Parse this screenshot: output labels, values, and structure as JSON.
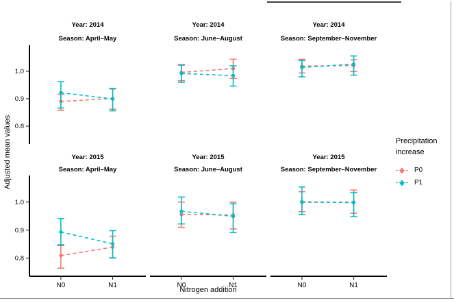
{
  "figure": {
    "y_axis_title": "Adjusted mean values",
    "x_axis_title": "Nitrogen addition",
    "legend": {
      "title_lines": [
        "Precipitation",
        "increase"
      ],
      "items": [
        {
          "label": "P0",
          "color": "#F8766D"
        },
        {
          "label": "P1",
          "color": "#00BFC4"
        }
      ]
    }
  },
  "chart_data": {
    "type": "line",
    "style": "faceted point-range chart: dashed lines connecting group means with error bars (ggplot-like, 2 rows x 3 cols)",
    "xlabel": "Nitrogen addition",
    "ylabel": "Adjusted mean values",
    "x_categories": [
      "N0",
      "N1"
    ],
    "yticks": [
      0.8,
      0.9,
      1.0
    ],
    "ylim": [
      0.735,
      1.095
    ],
    "grid": false,
    "legend_position": "right",
    "facet_rows": [
      "Year: 2014",
      "Year: 2015"
    ],
    "facet_cols": [
      "Season: April–May",
      "Season: June–August",
      "Season: September–November"
    ],
    "series_colors": {
      "P0": "#F8766D",
      "P1": "#00BFC4"
    },
    "panels": [
      {
        "row_label": "Year: 2014",
        "col_label": "Season: April–May",
        "series": [
          {
            "name": "P0",
            "points": [
              {
                "x": "N0",
                "y": 0.89,
                "lo": 0.858,
                "hi": 0.916
              },
              {
                "x": "N1",
                "y": 0.901,
                "lo": 0.862,
                "hi": 0.938
              }
            ]
          },
          {
            "name": "P1",
            "points": [
              {
                "x": "N0",
                "y": 0.922,
                "lo": 0.866,
                "hi": 0.962
              },
              {
                "x": "N1",
                "y": 0.899,
                "lo": 0.856,
                "hi": 0.936
              }
            ]
          }
        ]
      },
      {
        "row_label": "Year: 2014",
        "col_label": "Season: June–August",
        "series": [
          {
            "name": "P0",
            "points": [
              {
                "x": "N0",
                "y": 0.996,
                "lo": 0.966,
                "hi": 1.022
              },
              {
                "x": "N1",
                "y": 1.01,
                "lo": 0.974,
                "hi": 1.044
              }
            ]
          },
          {
            "name": "P1",
            "points": [
              {
                "x": "N0",
                "y": 0.992,
                "lo": 0.96,
                "hi": 1.024
              },
              {
                "x": "N1",
                "y": 0.984,
                "lo": 0.946,
                "hi": 1.02
              }
            ]
          }
        ]
      },
      {
        "row_label": "Year: 2014",
        "col_label": "Season: September–November",
        "series": [
          {
            "name": "P0",
            "points": [
              {
                "x": "N0",
                "y": 1.019,
                "lo": 0.994,
                "hi": 1.044
              },
              {
                "x": "N1",
                "y": 1.021,
                "lo": 0.999,
                "hi": 1.042
              }
            ]
          },
          {
            "name": "P1",
            "points": [
              {
                "x": "N0",
                "y": 1.014,
                "lo": 0.98,
                "hi": 1.039
              },
              {
                "x": "N1",
                "y": 1.026,
                "lo": 0.986,
                "hi": 1.056
              }
            ]
          }
        ]
      },
      {
        "row_label": "Year: 2015",
        "col_label": "Season: April–May",
        "series": [
          {
            "name": "P0",
            "points": [
              {
                "x": "N0",
                "y": 0.809,
                "lo": 0.764,
                "hi": 0.848
              },
              {
                "x": "N1",
                "y": 0.839,
                "lo": 0.8,
                "hi": 0.878
              }
            ]
          },
          {
            "name": "P1",
            "points": [
              {
                "x": "N0",
                "y": 0.893,
                "lo": 0.845,
                "hi": 0.941
              },
              {
                "x": "N1",
                "y": 0.851,
                "lo": 0.801,
                "hi": 0.898
              }
            ]
          }
        ]
      },
      {
        "row_label": "Year: 2015",
        "col_label": "Season: June–August",
        "series": [
          {
            "name": "P0",
            "points": [
              {
                "x": "N0",
                "y": 0.956,
                "lo": 0.91,
                "hi": 1.0
              },
              {
                "x": "N1",
                "y": 0.954,
                "lo": 0.904,
                "hi": 1.0
              }
            ]
          },
          {
            "name": "P1",
            "points": [
              {
                "x": "N0",
                "y": 0.967,
                "lo": 0.922,
                "hi": 1.018
              },
              {
                "x": "N1",
                "y": 0.949,
                "lo": 0.891,
                "hi": 0.994
              }
            ]
          }
        ]
      },
      {
        "row_label": "Year: 2015",
        "col_label": "Season: September–November",
        "series": [
          {
            "name": "P0",
            "points": [
              {
                "x": "N0",
                "y": 0.999,
                "lo": 0.966,
                "hi": 1.037
              },
              {
                "x": "N1",
                "y": 1.0,
                "lo": 0.96,
                "hi": 1.043
              }
            ]
          },
          {
            "name": "P1",
            "points": [
              {
                "x": "N0",
                "y": 1.001,
                "lo": 0.955,
                "hi": 1.054
              },
              {
                "x": "N1",
                "y": 0.998,
                "lo": 0.948,
                "hi": 1.034
              }
            ]
          }
        ]
      }
    ]
  }
}
